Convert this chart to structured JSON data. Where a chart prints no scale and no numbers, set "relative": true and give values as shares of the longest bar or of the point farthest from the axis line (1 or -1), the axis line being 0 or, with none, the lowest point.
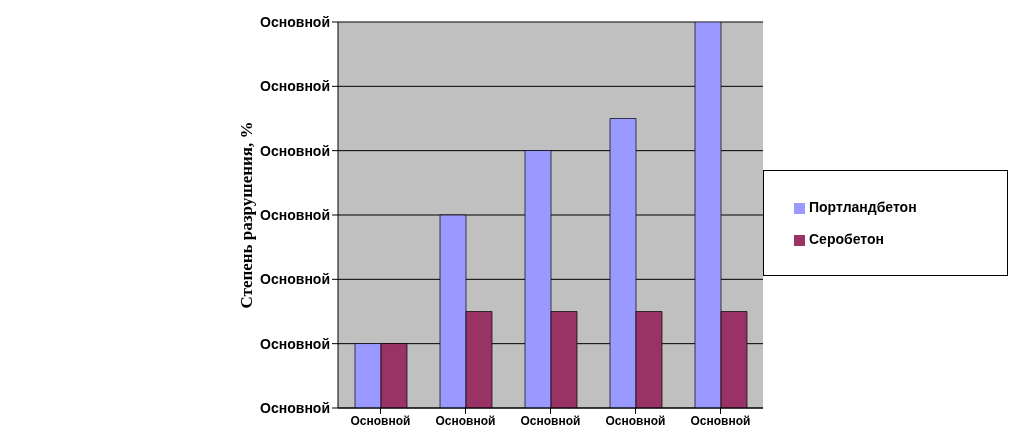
{
  "chart_data": {
    "type": "bar",
    "ylabel": "Степень разрушения, %",
    "relative": true,
    "categories": [
      "Основной",
      "Основной",
      "Основной",
      "Основной",
      "Основной"
    ],
    "series": [
      {
        "name": "Портландбетон",
        "color": "#9999ff",
        "values": [
          0.167,
          0.5,
          0.667,
          0.75,
          1
        ]
      },
      {
        "name": "Серобетон",
        "color": "#993366",
        "values": [
          0.167,
          0.25,
          0.25,
          0.25,
          0.25
        ]
      }
    ],
    "annotations": [
      "Основной",
      "Основной",
      "Основной",
      "Основной",
      "Основной",
      "Основной",
      "Основной"
    ],
    "grid": "y",
    "legend": "right"
  }
}
